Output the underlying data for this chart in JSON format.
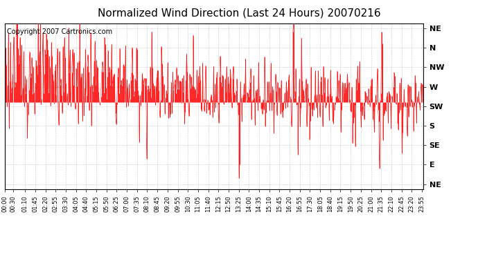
{
  "title": "Normalized Wind Direction (Last 24 Hours) 20070216",
  "copyright_text": "Copyright 2007 Cartronics.com",
  "line_color": "#ff0000",
  "background_color": "white",
  "plot_bg_color": "white",
  "grid_color": "#bbbbbb",
  "y_tick_labels": [
    "NE",
    "N",
    "NW",
    "W",
    "SW",
    "S",
    "SE",
    "E",
    "NE"
  ],
  "y_tick_values": [
    8,
    7,
    6,
    5,
    4,
    3,
    2,
    1,
    0
  ],
  "y_min": -0.25,
  "y_max": 8.25,
  "x_tick_labels": [
    "00:00",
    "00:30",
    "01:10",
    "01:45",
    "02:20",
    "02:55",
    "03:30",
    "04:05",
    "04:40",
    "05:15",
    "05:50",
    "06:25",
    "07:00",
    "07:35",
    "08:10",
    "08:45",
    "09:20",
    "09:55",
    "10:30",
    "11:05",
    "11:40",
    "12:15",
    "12:50",
    "13:25",
    "14:00",
    "14:35",
    "15:10",
    "15:45",
    "16:20",
    "16:55",
    "17:30",
    "18:05",
    "18:40",
    "19:15",
    "19:50",
    "20:25",
    "21:00",
    "21:35",
    "22:10",
    "22:45",
    "23:20",
    "23:55"
  ],
  "title_fontsize": 11,
  "copyright_fontsize": 7,
  "tick_fontsize": 6,
  "y_label_fontsize": 8,
  "figwidth": 6.9,
  "figheight": 3.75,
  "dpi": 100
}
